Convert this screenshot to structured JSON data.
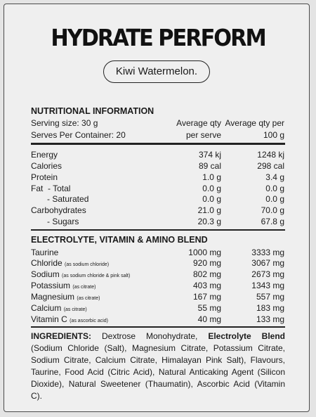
{
  "title": "HYDRATE PERFORM",
  "flavour": "Kiwi Watermelon.",
  "nutrition": {
    "heading": "NUTRITIONAL INFORMATION",
    "serving_size": "Serving size: 30 g",
    "serves_per_container": "Serves Per Container: 20",
    "col1_line1": "Average qty",
    "col1_line2": "per serve",
    "col2_line1": "Average qty per",
    "col2_line2": "100 g",
    "rows": [
      {
        "label": "Energy",
        "per_serve": "374 kj",
        "per_100g": "1248 kj"
      },
      {
        "label": "Calories",
        "per_serve": "89 cal",
        "per_100g": "298 cal"
      },
      {
        "label": "Protein",
        "per_serve": "1.0 g",
        "per_100g": "3.4 g"
      },
      {
        "label": "Fat  - Total",
        "per_serve": "0.0 g",
        "per_100g": "0.0 g"
      },
      {
        "label": "- Saturated",
        "per_serve": "0.0 g",
        "per_100g": "0.0 g"
      },
      {
        "label": "Carbohydrates",
        "per_serve": "21.0 g",
        "per_100g": "70.0 g"
      },
      {
        "label": "- Sugars",
        "per_serve": "20.3 g",
        "per_100g": "67.8 g"
      }
    ]
  },
  "blend": {
    "heading": "ELECTROLYTE, VITAMIN & AMINO BLEND",
    "rows": [
      {
        "label": "Taurine",
        "note": "",
        "per_serve": "1000 mg",
        "per_100g": "3333 mg"
      },
      {
        "label": "Chloride",
        "note": "(as sodium chloride)",
        "per_serve": "920 mg",
        "per_100g": "3067 mg"
      },
      {
        "label": "Sodium",
        "note": "(as sodium chloride & pink salt)",
        "per_serve": "802 mg",
        "per_100g": "2673 mg"
      },
      {
        "label": "Potassium",
        "note": "(as citrate)",
        "per_serve": "403 mg",
        "per_100g": "1343 mg"
      },
      {
        "label": "Magnesium",
        "note": "(as citrate)",
        "per_serve": "167 mg",
        "per_100g": "557 mg"
      },
      {
        "label": "Calcium",
        "note": "(as citrate)",
        "per_serve": "55 mg",
        "per_100g": "183 mg"
      },
      {
        "label": "Vitamin C",
        "note": "(as ascorbic acid)",
        "per_serve": "40 mg",
        "per_100g": "133 mg"
      }
    ]
  },
  "ingredients": {
    "heading": "INGREDIENTS:",
    "text1": " Dextrose Monohydrate, ",
    "bold2": "Electrolyte Blend",
    "text3": " (Sodium Chloride (Salt), Magnesium Citrate, Potassium Citrate, Sodium Citrate, Calcium Citrate, Himalayan Pink Salt), Flavours, Taurine, Food Acid (Citric Acid), Natural Anticaking Agent (Silicon Dioxide), Natural Sweetener (Thaumatin), Ascorbic Acid (Vitamin C)."
  }
}
